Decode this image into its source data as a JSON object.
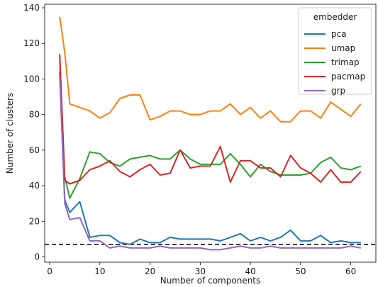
{
  "chart_data": {
    "type": "line",
    "xlabel": "Number of components",
    "ylabel": "Number of clusters",
    "xlim": [
      -1,
      65
    ],
    "ylim": [
      -3,
      142
    ],
    "xticks": [
      0,
      10,
      20,
      30,
      40,
      50,
      60
    ],
    "yticks": [
      0,
      20,
      40,
      60,
      80,
      100,
      120,
      140
    ],
    "grid": false,
    "legend": {
      "title": "embedder",
      "placement": "top-right"
    },
    "hline": {
      "y": 7,
      "style": "dashed",
      "color": "#000000"
    },
    "x": [
      2,
      3,
      4,
      6,
      8,
      10,
      12,
      14,
      16,
      18,
      20,
      22,
      24,
      26,
      28,
      30,
      32,
      34,
      36,
      38,
      40,
      42,
      44,
      46,
      48,
      50,
      52,
      54,
      56,
      58,
      60,
      62
    ],
    "series": [
      {
        "name": "pca",
        "color": "#1f77b4",
        "values": [
          104,
          32,
          25,
          31,
          11,
          12,
          12,
          8,
          7,
          10,
          8,
          8,
          11,
          10,
          10,
          10,
          10,
          9,
          11,
          13,
          9,
          11,
          9,
          11,
          15,
          9,
          9,
          12,
          8,
          9,
          8,
          8
        ]
      },
      {
        "name": "umap",
        "color": "#ff7f0e",
        "values": [
          135,
          115,
          86,
          84,
          82,
          78,
          81,
          89,
          91,
          91,
          77,
          79,
          82,
          82,
          80,
          80,
          82,
          82,
          86,
          80,
          84,
          78,
          82,
          76,
          76,
          82,
          82,
          78,
          87,
          83,
          79,
          86
        ]
      },
      {
        "name": "trimap",
        "color": "#2ca02c",
        "values": [
          112,
          45,
          33,
          44,
          59,
          58,
          53,
          51,
          55,
          56,
          57,
          55,
          55,
          60,
          55,
          52,
          52,
          52,
          58,
          52,
          45,
          52,
          48,
          46,
          46,
          46,
          47,
          53,
          56,
          50,
          49,
          51
        ]
      },
      {
        "name": "pacmap",
        "color": "#d62728",
        "values": [
          114,
          43,
          41,
          43,
          49,
          51,
          54,
          48,
          45,
          49,
          52,
          46,
          47,
          60,
          50,
          51,
          51,
          62,
          42,
          54,
          54,
          50,
          50,
          45,
          57,
          50,
          47,
          42,
          49,
          42,
          42,
          48
        ]
      },
      {
        "name": "grp",
        "color": "#9467bd",
        "values": [
          102,
          30,
          21,
          22,
          9,
          9,
          5,
          6,
          5,
          5,
          5,
          6,
          5,
          5,
          5,
          5,
          4,
          4,
          5,
          6,
          5,
          5,
          6,
          5,
          5,
          5,
          5,
          5,
          5,
          5,
          6,
          5
        ]
      }
    ]
  }
}
